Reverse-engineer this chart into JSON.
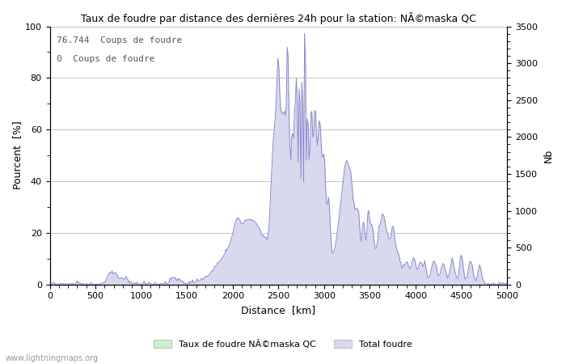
{
  "title": "Taux de foudre par distance des dernières 24h pour la station: NÃ©maska QC",
  "xlabel": "Distance  [km]",
  "ylabel_left": "Pourcent  [%]",
  "ylabel_right": "Nb",
  "annotation_line1": "76.744  Coups de foudre",
  "annotation_line2": "0  Coups de foudre",
  "xlim": [
    0,
    5000
  ],
  "ylim_left": [
    0,
    100
  ],
  "ylim_right": [
    0,
    3500
  ],
  "xticks": [
    0,
    500,
    1000,
    1500,
    2000,
    2500,
    3000,
    3500,
    4000,
    4500,
    5000
  ],
  "yticks_left": [
    0,
    20,
    40,
    60,
    80,
    100
  ],
  "yticks_right": [
    0,
    500,
    1000,
    1500,
    2000,
    2500,
    3000,
    3500
  ],
  "legend_label_green": "Taux de foudre NÃ©maska QC",
  "legend_label_blue": "Total foudre",
  "watermark": "www.lightningmaps.org",
  "line_color": "#8888cc",
  "fill_color_blue": "#d8d8ee",
  "fill_color_green": "#cceecc",
  "background_color": "#ffffff",
  "grid_color": "#bbbbbb"
}
